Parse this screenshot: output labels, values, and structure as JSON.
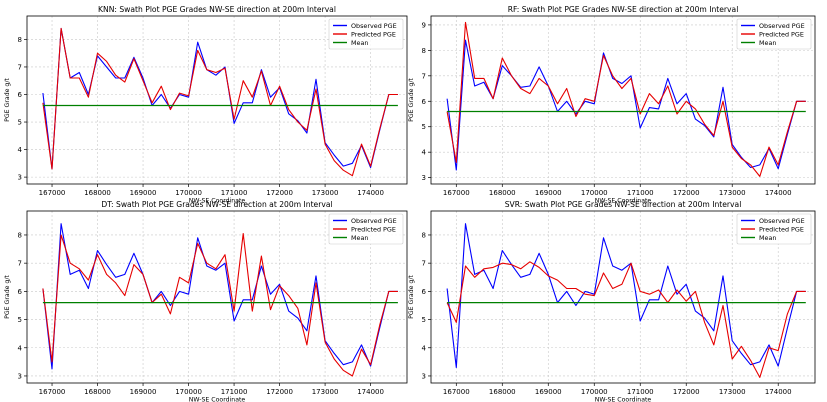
{
  "chart_data": [
    {
      "type": "line",
      "title": "KNN: Swath Plot PGE Grades NW-SE direction at 200m Interval",
      "xlabel": "NW-SE Coordinate",
      "ylabel": "PGE Grade g/t",
      "xlim": [
        166450,
        174800
      ],
      "ylim": [
        2.75,
        8.85
      ],
      "xticks": [
        167000,
        168000,
        169000,
        170000,
        171000,
        172000,
        173000,
        174000
      ],
      "yticks": [
        3,
        4,
        5,
        6,
        7,
        8
      ],
      "grid": true,
      "legend_position": "top-right",
      "x": [
        166800,
        167000,
        167200,
        167400,
        167600,
        167800,
        168000,
        168200,
        168400,
        168600,
        168800,
        169000,
        169200,
        169400,
        169600,
        169800,
        170000,
        170200,
        170400,
        170600,
        170800,
        171000,
        171200,
        171400,
        171600,
        171800,
        172000,
        172200,
        172400,
        172600,
        172800,
        173000,
        173200,
        173400,
        173600,
        173800,
        174000,
        174200,
        174400,
        174600
      ],
      "series": [
        {
          "name": "Observed PGE",
          "color": "#0000ff",
          "values": [
            6.05,
            3.3,
            8.4,
            6.6,
            6.8,
            6.0,
            7.4,
            7.0,
            6.6,
            6.6,
            7.35,
            6.6,
            5.6,
            6.0,
            5.5,
            6.0,
            5.9,
            7.9,
            6.9,
            6.7,
            7.0,
            4.95,
            5.7,
            5.7,
            6.9,
            5.9,
            6.25,
            5.3,
            5.05,
            4.6,
            6.55,
            4.25,
            3.8,
            3.4,
            3.5,
            4.15,
            3.35,
            4.7,
            6.0,
            6.0
          ]
        },
        {
          "name": "Predicted PGE",
          "color": "#e60000",
          "values": [
            5.7,
            3.3,
            8.4,
            6.6,
            6.6,
            5.9,
            7.5,
            7.2,
            6.7,
            6.45,
            7.3,
            6.5,
            5.7,
            6.3,
            5.45,
            6.05,
            5.95,
            7.6,
            6.9,
            6.8,
            6.95,
            5.1,
            6.5,
            5.9,
            6.85,
            5.6,
            6.3,
            5.45,
            5.0,
            4.7,
            6.2,
            4.2,
            3.6,
            3.25,
            3.05,
            4.2,
            3.4,
            4.75,
            6.0,
            6.0
          ]
        },
        {
          "name": "Mean",
          "color": "#008000",
          "values": [
            5.6,
            5.6,
            5.6,
            5.6,
            5.6,
            5.6,
            5.6,
            5.6,
            5.6,
            5.6,
            5.6,
            5.6,
            5.6,
            5.6,
            5.6,
            5.6,
            5.6,
            5.6,
            5.6,
            5.6,
            5.6,
            5.6,
            5.6,
            5.6,
            5.6,
            5.6,
            5.6,
            5.6,
            5.6,
            5.6,
            5.6,
            5.6,
            5.6,
            5.6,
            5.6,
            5.6,
            5.6,
            5.6,
            5.6,
            5.6
          ]
        }
      ]
    },
    {
      "type": "line",
      "title": "RF: Swath Plot PGE Grades NW-SE direction at 200m Interval",
      "xlabel": "NW-SE Coordinate",
      "ylabel": "PGE Grade g/t",
      "xlim": [
        166450,
        174800
      ],
      "ylim": [
        2.75,
        9.35
      ],
      "xticks": [
        167000,
        168000,
        169000,
        170000,
        171000,
        172000,
        173000,
        174000
      ],
      "yticks": [
        3,
        4,
        5,
        6,
        7,
        8,
        9
      ],
      "grid": true,
      "legend_position": "top-right",
      "x": [
        166800,
        167000,
        167200,
        167400,
        167600,
        167800,
        168000,
        168200,
        168400,
        168600,
        168800,
        169000,
        169200,
        169400,
        169600,
        169800,
        170000,
        170200,
        170400,
        170600,
        170800,
        171000,
        171200,
        171400,
        171600,
        171800,
        172000,
        172200,
        172400,
        172600,
        172800,
        173000,
        173200,
        173400,
        173600,
        173800,
        174000,
        174200,
        174400,
        174600
      ],
      "series": [
        {
          "name": "Observed PGE",
          "color": "#0000ff",
          "values": [
            6.1,
            3.3,
            8.4,
            6.6,
            6.75,
            6.1,
            7.4,
            7.0,
            6.55,
            6.6,
            7.35,
            6.6,
            5.6,
            6.0,
            5.5,
            6.0,
            5.9,
            7.9,
            6.9,
            6.7,
            7.0,
            4.95,
            5.75,
            5.7,
            6.9,
            5.9,
            6.3,
            5.3,
            5.05,
            4.6,
            6.55,
            4.3,
            3.8,
            3.4,
            3.5,
            4.15,
            3.35,
            4.7,
            6.0,
            6.0
          ]
        },
        {
          "name": "Predicted PGE",
          "color": "#e60000",
          "values": [
            5.6,
            3.6,
            9.1,
            6.9,
            6.9,
            6.1,
            7.7,
            7.0,
            6.5,
            6.3,
            6.9,
            6.6,
            5.9,
            6.5,
            5.4,
            6.1,
            6.0,
            7.8,
            7.0,
            6.5,
            6.9,
            5.5,
            6.3,
            5.9,
            6.6,
            5.5,
            6.0,
            5.7,
            5.1,
            4.65,
            6.0,
            4.2,
            3.75,
            3.5,
            3.05,
            4.2,
            3.5,
            4.8,
            6.0,
            6.0
          ]
        },
        {
          "name": "Mean",
          "color": "#008000",
          "values": [
            5.6,
            5.6,
            5.6,
            5.6,
            5.6,
            5.6,
            5.6,
            5.6,
            5.6,
            5.6,
            5.6,
            5.6,
            5.6,
            5.6,
            5.6,
            5.6,
            5.6,
            5.6,
            5.6,
            5.6,
            5.6,
            5.6,
            5.6,
            5.6,
            5.6,
            5.6,
            5.6,
            5.6,
            5.6,
            5.6,
            5.6,
            5.6,
            5.6,
            5.6,
            5.6,
            5.6,
            5.6,
            5.6,
            5.6,
            5.6
          ]
        }
      ]
    },
    {
      "type": "line",
      "title": "DT: Swath Plot PGE Grades NW-SE direction at 200m Interval",
      "xlabel": "NW-SE Coordinate",
      "ylabel": "PGE Grade g/t",
      "xlim": [
        166450,
        174800
      ],
      "ylim": [
        2.75,
        8.85
      ],
      "xticks": [
        167000,
        168000,
        169000,
        170000,
        171000,
        172000,
        173000,
        174000
      ],
      "yticks": [
        3,
        4,
        5,
        6,
        7,
        8
      ],
      "grid": true,
      "legend_position": "top-right",
      "x": [
        166800,
        167000,
        167200,
        167400,
        167600,
        167800,
        168000,
        168200,
        168400,
        168600,
        168800,
        169000,
        169200,
        169400,
        169600,
        169800,
        170000,
        170200,
        170400,
        170600,
        170800,
        171000,
        171200,
        171400,
        171600,
        171800,
        172000,
        172200,
        172400,
        172600,
        172800,
        173000,
        173200,
        173400,
        173600,
        173800,
        174000,
        174200,
        174400,
        174600
      ],
      "series": [
        {
          "name": "Observed PGE",
          "color": "#0000ff",
          "values": [
            6.1,
            3.25,
            8.4,
            6.6,
            6.75,
            6.1,
            7.45,
            6.95,
            6.5,
            6.6,
            7.35,
            6.6,
            5.6,
            6.0,
            5.5,
            6.0,
            5.9,
            7.9,
            6.9,
            6.75,
            7.0,
            4.95,
            5.7,
            5.7,
            6.9,
            5.9,
            6.25,
            5.3,
            5.05,
            4.6,
            6.55,
            4.25,
            3.8,
            3.4,
            3.5,
            4.1,
            3.35,
            4.7,
            6.0,
            6.0
          ]
        },
        {
          "name": "Predicted PGE",
          "color": "#e60000",
          "values": [
            6.1,
            3.5,
            8.0,
            7.0,
            6.8,
            6.4,
            7.3,
            6.6,
            6.3,
            5.85,
            6.95,
            6.6,
            5.6,
            5.9,
            5.2,
            6.5,
            6.3,
            7.7,
            7.0,
            6.8,
            7.3,
            5.3,
            8.05,
            5.3,
            7.25,
            5.35,
            6.2,
            5.85,
            5.4,
            4.1,
            6.3,
            4.2,
            3.6,
            3.2,
            3.0,
            3.95,
            3.4,
            4.8,
            6.0,
            6.0
          ]
        },
        {
          "name": "Mean",
          "color": "#008000",
          "values": [
            5.6,
            5.6,
            5.6,
            5.6,
            5.6,
            5.6,
            5.6,
            5.6,
            5.6,
            5.6,
            5.6,
            5.6,
            5.6,
            5.6,
            5.6,
            5.6,
            5.6,
            5.6,
            5.6,
            5.6,
            5.6,
            5.6,
            5.6,
            5.6,
            5.6,
            5.6,
            5.6,
            5.6,
            5.6,
            5.6,
            5.6,
            5.6,
            5.6,
            5.6,
            5.6,
            5.6,
            5.6,
            5.6,
            5.6,
            5.6
          ]
        }
      ]
    },
    {
      "type": "line",
      "title": "SVR: Swath Plot PGE Grades NW-SE direction at 200m Interval",
      "xlabel": "NW-SE Coordinate",
      "ylabel": "PGE Grade g/t",
      "xlim": [
        166450,
        174800
      ],
      "ylim": [
        2.75,
        8.85
      ],
      "xticks": [
        167000,
        168000,
        169000,
        170000,
        171000,
        172000,
        173000,
        174000
      ],
      "yticks": [
        3,
        4,
        5,
        6,
        7,
        8
      ],
      "grid": true,
      "legend_position": "top-right",
      "x": [
        166800,
        167000,
        167200,
        167400,
        167600,
        167800,
        168000,
        168200,
        168400,
        168600,
        168800,
        169000,
        169200,
        169400,
        169600,
        169800,
        170000,
        170200,
        170400,
        170600,
        170800,
        171000,
        171200,
        171400,
        171600,
        171800,
        172000,
        172200,
        172400,
        172600,
        172800,
        173000,
        173200,
        173400,
        173600,
        173800,
        174000,
        174200,
        174400,
        174600
      ],
      "series": [
        {
          "name": "Observed PGE",
          "color": "#0000ff",
          "values": [
            6.1,
            3.3,
            8.4,
            6.6,
            6.75,
            6.1,
            7.45,
            6.95,
            6.5,
            6.6,
            7.35,
            6.6,
            5.6,
            6.0,
            5.5,
            6.0,
            5.9,
            7.9,
            6.9,
            6.75,
            7.0,
            4.95,
            5.7,
            5.7,
            6.9,
            5.9,
            6.25,
            5.3,
            5.05,
            4.6,
            6.55,
            4.25,
            3.8,
            3.4,
            3.5,
            4.1,
            3.35,
            4.7,
            6.0,
            6.0
          ]
        },
        {
          "name": "Predicted PGE",
          "color": "#e60000",
          "values": [
            5.6,
            4.9,
            6.9,
            6.5,
            6.8,
            6.85,
            7.0,
            6.95,
            6.8,
            7.05,
            6.85,
            6.55,
            6.4,
            6.1,
            6.1,
            5.9,
            5.85,
            6.65,
            6.1,
            6.25,
            7.0,
            6.0,
            5.9,
            6.05,
            5.6,
            6.05,
            5.65,
            6.0,
            4.9,
            4.1,
            5.5,
            3.6,
            4.05,
            3.55,
            2.95,
            4.0,
            3.9,
            5.2,
            6.0,
            6.0
          ]
        },
        {
          "name": "Mean",
          "color": "#008000",
          "values": [
            5.6,
            5.6,
            5.6,
            5.6,
            5.6,
            5.6,
            5.6,
            5.6,
            5.6,
            5.6,
            5.6,
            5.6,
            5.6,
            5.6,
            5.6,
            5.6,
            5.6,
            5.6,
            5.6,
            5.6,
            5.6,
            5.6,
            5.6,
            5.6,
            5.6,
            5.6,
            5.6,
            5.6,
            5.6,
            5.6,
            5.6,
            5.6,
            5.6,
            5.6,
            5.6,
            5.6,
            5.6,
            5.6,
            5.6,
            5.6
          ]
        }
      ]
    }
  ]
}
